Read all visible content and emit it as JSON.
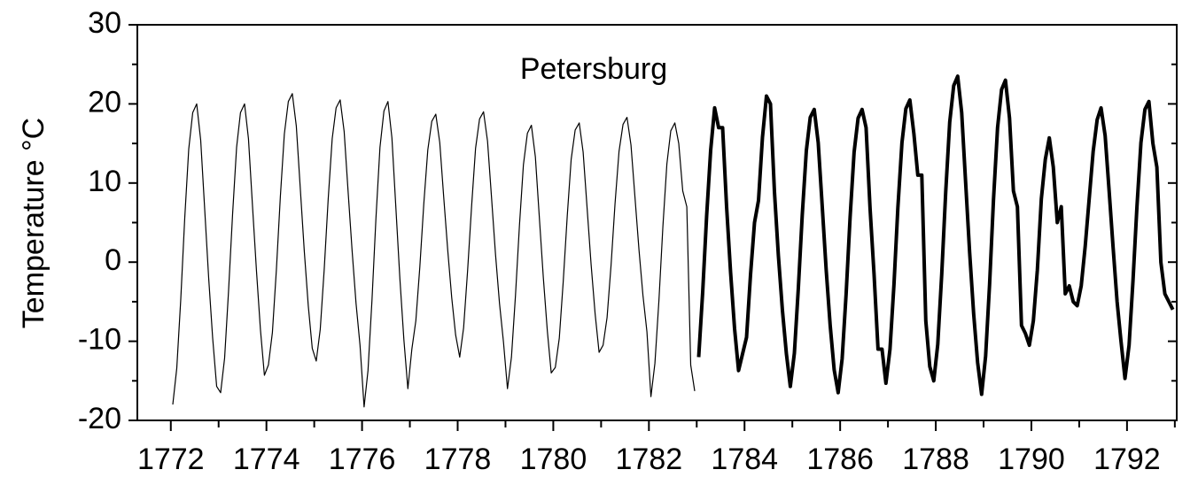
{
  "chart_data": {
    "type": "line",
    "annotation": "Petersburg",
    "ylabel": "Temperature °C",
    "xlim": [
      1771.3,
      1793.04
    ],
    "ylim": [
      -20,
      30
    ],
    "xticks": [
      1772,
      1774,
      1776,
      1778,
      1780,
      1782,
      1784,
      1786,
      1788,
      1790,
      1792
    ],
    "xminorticks": [
      1773,
      1775,
      1777,
      1779,
      1781,
      1783,
      1785,
      1787,
      1789,
      1791,
      1793
    ],
    "yticks": [
      -20,
      -10,
      0,
      10,
      20,
      30
    ],
    "yminorticks": [
      -15,
      -5,
      5,
      15,
      25
    ],
    "series": [
      {
        "color": "#000000",
        "line_width": 1.2,
        "x": [
          1772.042,
          1772.125,
          1772.208,
          1772.292,
          1772.375,
          1772.458,
          1772.542,
          1772.625,
          1772.708,
          1772.792,
          1772.875,
          1772.958,
          1773.042,
          1773.125,
          1773.208,
          1773.292,
          1773.375,
          1773.458,
          1773.542,
          1773.625,
          1773.708,
          1773.792,
          1773.875,
          1773.958,
          1774.042,
          1774.125,
          1774.208,
          1774.292,
          1774.375,
          1774.458,
          1774.542,
          1774.625,
          1774.708,
          1774.792,
          1774.875,
          1774.958,
          1775.042,
          1775.125,
          1775.208,
          1775.292,
          1775.375,
          1775.458,
          1775.542,
          1775.625,
          1775.708,
          1775.792,
          1775.875,
          1775.958,
          1776.042,
          1776.125,
          1776.208,
          1776.292,
          1776.375,
          1776.458,
          1776.542,
          1776.625,
          1776.708,
          1776.792,
          1776.875,
          1776.958,
          1777.042,
          1777.125,
          1777.208,
          1777.292,
          1777.375,
          1777.458,
          1777.542,
          1777.625,
          1777.708,
          1777.792,
          1777.875,
          1777.958,
          1778.042,
          1778.125,
          1778.208,
          1778.292,
          1778.375,
          1778.458,
          1778.542,
          1778.625,
          1778.708,
          1778.792,
          1778.875,
          1778.958,
          1779.042,
          1779.125,
          1779.208,
          1779.292,
          1779.375,
          1779.458,
          1779.542,
          1779.625,
          1779.708,
          1779.792,
          1779.875,
          1779.958,
          1780.042,
          1780.125,
          1780.208,
          1780.292,
          1780.375,
          1780.458,
          1780.542,
          1780.625,
          1780.708,
          1780.792,
          1780.875,
          1780.958,
          1781.042,
          1781.125,
          1781.208,
          1781.292,
          1781.375,
          1781.458,
          1781.542,
          1781.625,
          1781.708,
          1781.792,
          1781.875,
          1781.958,
          1782.042,
          1782.125,
          1782.208,
          1782.292,
          1782.375,
          1782.458,
          1782.542,
          1782.625,
          1782.708,
          1782.792,
          1782.875,
          1782.958
        ],
        "values": [
          -18,
          -13.4,
          -4.7,
          5.6,
          14.3,
          18.9,
          20,
          15.4,
          6.7,
          -2,
          -9.6,
          -15.7,
          -16.5,
          -12.1,
          -3.7,
          6.1,
          14.5,
          18.9,
          20,
          15.6,
          7.2,
          -1.2,
          -8.5,
          -14.3,
          -13,
          -8.9,
          -1,
          8.3,
          16.2,
          20.3,
          21.3,
          17.2,
          9.3,
          1.4,
          -5.5,
          -10.9,
          -12.5,
          -8.5,
          -0.9,
          8,
          15.6,
          19.5,
          20.5,
          16.5,
          9,
          1.4,
          -5.2,
          -10.5,
          -18.3,
          -13.7,
          -4.8,
          5.6,
          14.5,
          19.1,
          20.3,
          15.7,
          6.8,
          -2.1,
          -9.8,
          -16,
          -11,
          -7.4,
          -0.6,
          7.4,
          14.2,
          17.8,
          18.7,
          15.1,
          8.3,
          1.5,
          -4.5,
          -9.2,
          -12,
          -8.3,
          -1.1,
          7.2,
          14.4,
          18.1,
          19,
          15.3,
          8.2,
          1,
          -5.2,
          -10.1,
          -16,
          -12,
          -4.3,
          4.6,
          12.3,
          16.3,
          17.3,
          13.3,
          5.6,
          -2,
          -8.7,
          -14,
          -13.3,
          -9.6,
          -2.5,
          5.9,
          13,
          16.7,
          17.6,
          13.9,
          6.8,
          -0.3,
          -6.5,
          -11.4,
          -10.5,
          -7,
          -0.4,
          7.4,
          14,
          17.4,
          18.3,
          14.8,
          8.2,
          1.6,
          -4.2,
          -8.8,
          -17,
          -12.8,
          -4.9,
          4.5,
          12.4,
          16.6,
          17.6,
          15,
          9,
          7,
          -13,
          -16.3
        ]
      },
      {
        "color": "#000000",
        "line_width": 4,
        "x": [
          1783.042,
          1783.125,
          1783.208,
          1783.292,
          1783.375,
          1783.458,
          1783.542,
          1783.625,
          1783.708,
          1783.792,
          1783.875,
          1783.958,
          1784.042,
          1784.125,
          1784.208,
          1784.292,
          1784.375,
          1784.458,
          1784.542,
          1784.625,
          1784.708,
          1784.792,
          1784.875,
          1784.958,
          1785.042,
          1785.125,
          1785.208,
          1785.292,
          1785.375,
          1785.458,
          1785.542,
          1785.625,
          1785.708,
          1785.792,
          1785.875,
          1785.958,
          1786.042,
          1786.125,
          1786.208,
          1786.292,
          1786.375,
          1786.458,
          1786.542,
          1786.625,
          1786.708,
          1786.792,
          1786.875,
          1786.958,
          1787.042,
          1787.125,
          1787.208,
          1787.292,
          1787.375,
          1787.458,
          1787.542,
          1787.625,
          1787.708,
          1787.792,
          1787.875,
          1787.958,
          1788.042,
          1788.125,
          1788.208,
          1788.292,
          1788.375,
          1788.458,
          1788.542,
          1788.625,
          1788.708,
          1788.792,
          1788.875,
          1788.958,
          1789.042,
          1789.125,
          1789.208,
          1789.292,
          1789.375,
          1789.458,
          1789.542,
          1789.625,
          1789.708,
          1789.792,
          1789.875,
          1789.958,
          1790.042,
          1790.125,
          1790.208,
          1790.292,
          1790.375,
          1790.458,
          1790.542,
          1790.625,
          1790.708,
          1790.792,
          1790.875,
          1790.958,
          1791.042,
          1791.125,
          1791.208,
          1791.292,
          1791.375,
          1791.458,
          1791.542,
          1791.625,
          1791.708,
          1791.792,
          1791.875,
          1791.958,
          1792.042,
          1792.125,
          1792.208,
          1792.292,
          1792.375,
          1792.458,
          1792.542,
          1792.625,
          1792.708,
          1792.792,
          1792.875,
          1792.958
        ],
        "values": [
          -12,
          -3.8,
          5.9,
          14.1,
          19.5,
          17,
          17,
          7,
          -1.3,
          -8.4,
          -13.7,
          -11.6,
          -9.5,
          -1.6,
          5,
          7.8,
          15.8,
          21,
          20,
          8.9,
          0.9,
          -6.1,
          -11.6,
          -15.7,
          -11.5,
          -3.4,
          6,
          14.1,
          18.3,
          19.3,
          15.1,
          7.1,
          -1,
          -8,
          -13.6,
          -16.5,
          -12.2,
          -4,
          5.7,
          13.9,
          18.2,
          19.3,
          17,
          6.8,
          -1.5,
          -11,
          -11,
          -15.3,
          -11,
          -2.8,
          6.9,
          15.1,
          19.4,
          20.5,
          16.2,
          11,
          11,
          -7.4,
          -13.2,
          -15,
          -10.4,
          -1.5,
          8.9,
          17.7,
          22.3,
          23.5,
          18.9,
          10,
          1.2,
          -6.5,
          -12.7,
          -16.7,
          -11.9,
          -2.8,
          7.9,
          17,
          21.8,
          23,
          18.2,
          9,
          7,
          -8,
          -9,
          -10.5,
          -7.4,
          -1,
          8,
          13,
          15.7,
          12,
          5,
          7,
          -4,
          -3,
          -5,
          -5.5,
          -3,
          2,
          8,
          14,
          18,
          19.5,
          16,
          9,
          2,
          -5,
          -10,
          -14.7,
          -10.5,
          -2.4,
          7,
          15.1,
          19.3,
          20.3,
          15,
          12,
          0,
          -4,
          -5,
          -6
        ]
      }
    ]
  }
}
